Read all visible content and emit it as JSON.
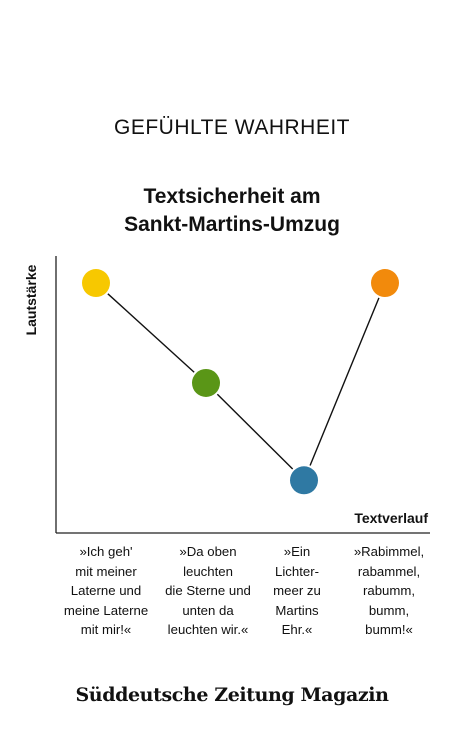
{
  "kicker": "GEFÜHLTE WAHRHEIT",
  "chart_data": {
    "type": "line",
    "title": [
      "Textsicherheit am",
      "Sankt-Martins-Umzug"
    ],
    "xlabel": "Textverlauf",
    "ylabel": "Lautstärke",
    "categories": [
      "»Ich geh'\nmit meiner\nLaterne und\nmeine Laterne\nmit mir!«",
      "»Da oben\nleuchten\ndie Sterne und\nunten da\nleuchten wir.«",
      "»Ein\nLichter-\nmeer zu\nMartins\nEhr.«",
      "»Rabimmel,\nrabammel,\nrabumm,\nbumm,\nbumm!«"
    ],
    "values": [
      0.92,
      0.54,
      0.17,
      0.92
    ],
    "ylim": [
      0,
      1
    ],
    "point_colors": [
      "#f7c800",
      "#5a9617",
      "#2f79a3",
      "#f28a0c"
    ],
    "line_color": "#111111",
    "grid": false,
    "legend": "none"
  },
  "logo": "Süddeutsche Zeitung Magazin"
}
